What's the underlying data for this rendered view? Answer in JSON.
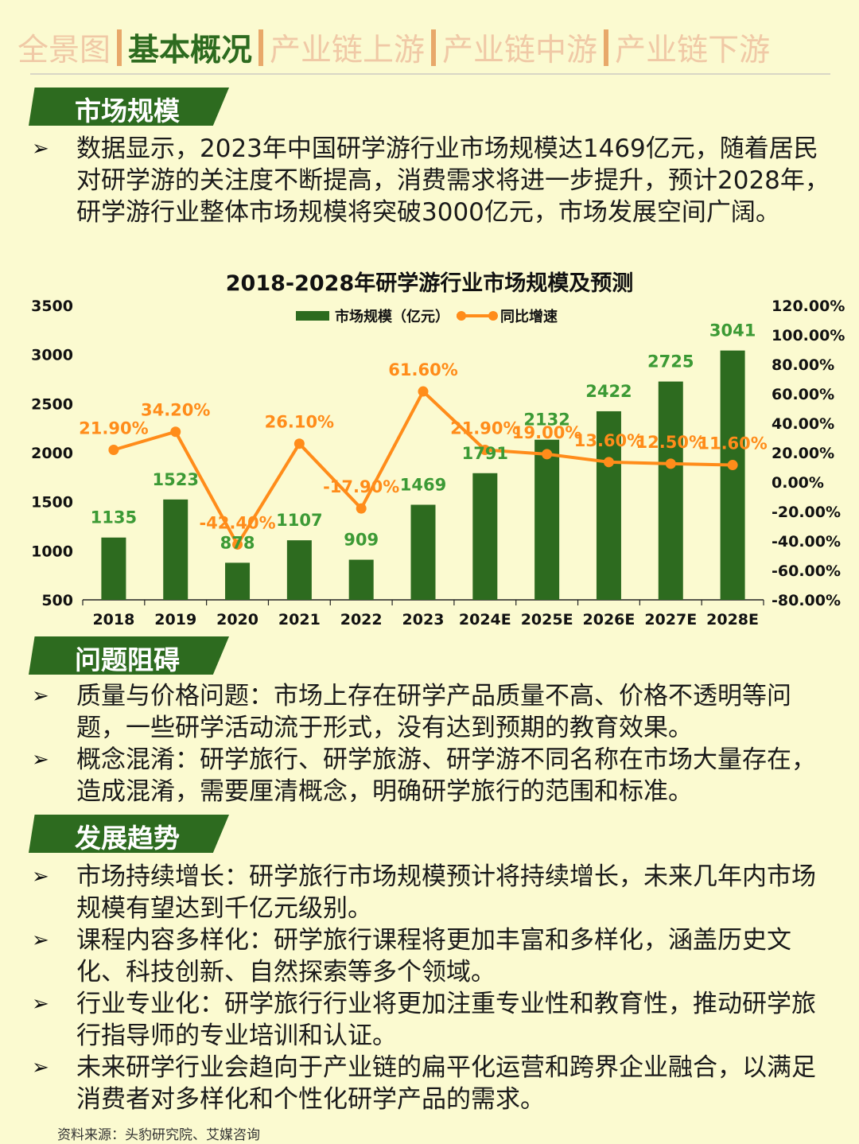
{
  "nav": {
    "tabs": [
      {
        "label": "全景图",
        "active": false
      },
      {
        "label": "基本概况",
        "active": true
      },
      {
        "label": "产业链上游",
        "active": false
      },
      {
        "label": "产业链中游",
        "active": false
      },
      {
        "label": "产业链下游",
        "active": false
      }
    ]
  },
  "colors": {
    "accent": "#2d6b1f",
    "line": "#ff8c1a",
    "muted_tab": "#f0c9a6",
    "background": "#fbfad0"
  },
  "sections": {
    "market": {
      "title": "市场规模",
      "bullets": [
        "数据显示，2023年中国研学游行业市场规模达1469亿元，随着居民对研学游的关注度不断提高，消费需求将进一步提升，预计2028年，研学游行业整体市场规模将突破3000亿元，市场发展空间广阔。"
      ]
    },
    "problems": {
      "title": "问题阻碍",
      "bullets": [
        "质量与价格问题：市场上存在研学产品质量不高、价格不透明等问题，一些研学活动流于形式，没有达到预期的教育效果。",
        "概念混淆：研学旅行、研学旅游、研学游不同名称在市场大量存在，造成混淆，需要厘清概念，明确研学旅行的范围和标准。"
      ]
    },
    "trends": {
      "title": "发展趋势",
      "bullets": [
        "市场持续增长：研学旅行市场规模预计将持续增长，未来几年内市场规模有望达到千亿元级别。",
        "课程内容多样化：研学旅行课程将更加丰富和多样化，涵盖历史文化、科技创新、自然探索等多个领域。",
        "行业专业化：研学旅行行业将更加注重专业性和教育性，推动研学旅行指导师的专业培训和认证。",
        "未来研学行业会趋向于产业链的扁平化运营和跨界企业融合，以满足消费者对多样化和个性化研学产品的需求。"
      ]
    }
  },
  "chart_data": {
    "type": "bar",
    "title": "2018-2028年研学游行业市场规模及预测",
    "categories": [
      "2018",
      "2019",
      "2020",
      "2021",
      "2022",
      "2023",
      "2024E",
      "2025E",
      "2026E",
      "2027E",
      "2028E"
    ],
    "series": [
      {
        "name": "市场规模（亿元）",
        "type": "bar",
        "axis": "left",
        "color": "#2d6b1f",
        "values": [
          1135,
          1523,
          878,
          1107,
          909,
          1469,
          1791,
          2132,
          2422,
          2725,
          3041
        ],
        "labels": [
          "1135",
          "1523",
          "878",
          "1107",
          "909",
          "1469",
          "1791",
          "2132",
          "2422",
          "2725",
          "3041"
        ]
      },
      {
        "name": "同比增速",
        "type": "line",
        "axis": "right",
        "color": "#ff8c1a",
        "values": [
          21.9,
          34.2,
          -42.4,
          26.1,
          -17.9,
          61.6,
          21.9,
          19.0,
          13.6,
          12.5,
          11.6
        ],
        "labels": [
          "21.90%",
          "34.20%",
          "-42.40%",
          "26.10%",
          "-17.90%",
          "61.60%",
          "21.90%",
          "19.00%",
          "13.60%",
          "12.50%",
          "11.60%"
        ]
      }
    ],
    "ylim_left": [
      500,
      3500
    ],
    "yticks_left": [
      "3500",
      "3000",
      "2500",
      "2000",
      "1500",
      "1000",
      "500"
    ],
    "ylim_right": [
      -80,
      120
    ],
    "yticks_right": [
      "120.00%",
      "100.00%",
      "80.00%",
      "60.00%",
      "40.00%",
      "20.00%",
      "0.00%",
      "-20.00%",
      "-40.00%",
      "-60.00%",
      "-80.00%"
    ],
    "legend_position": "top-center",
    "grid": false
  },
  "source": "资料来源：头豹研究院、艾媒咨询"
}
